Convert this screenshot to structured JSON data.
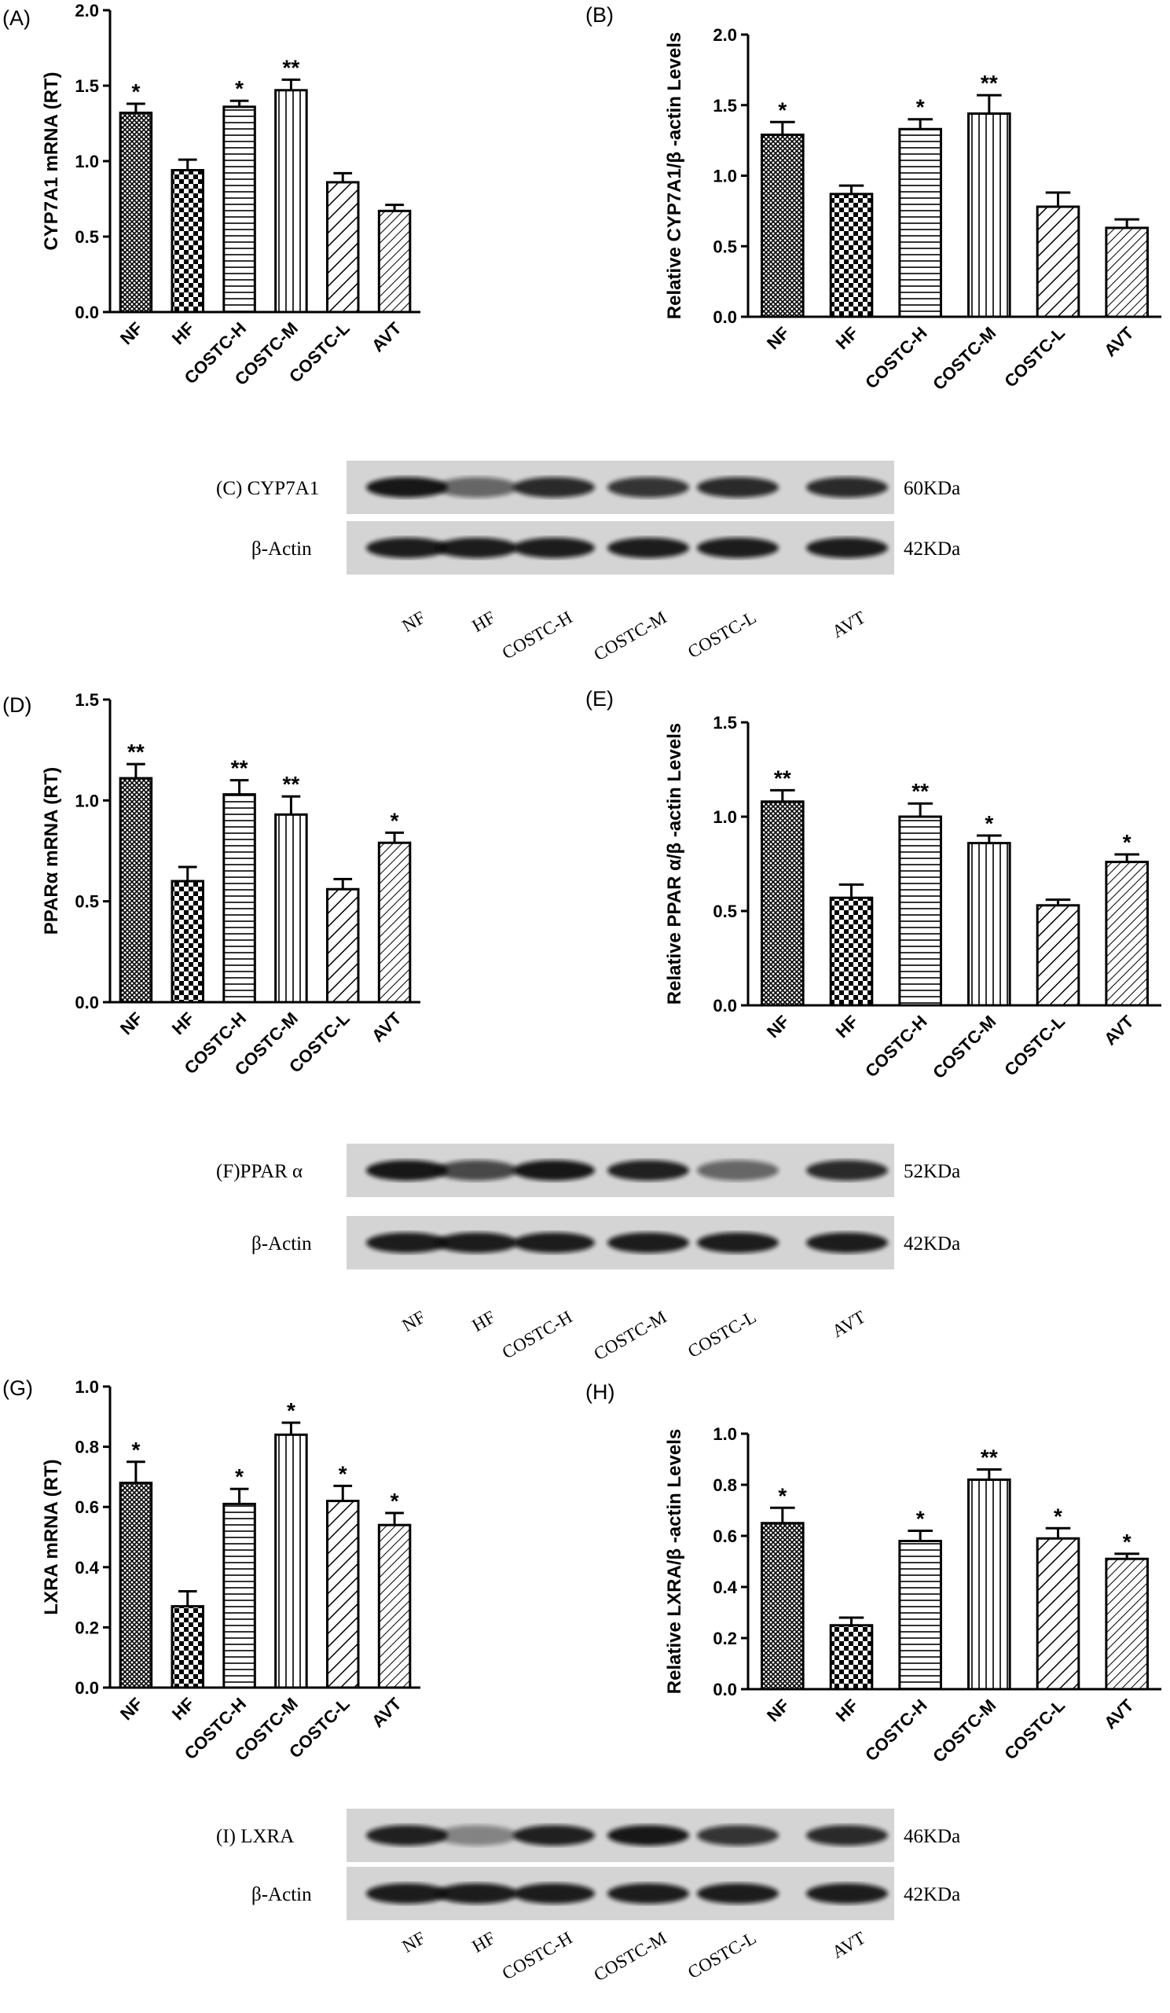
{
  "chart_data": [
    {
      "type": "bar",
      "panel": "(A)",
      "ylabel": "CYP7A1 mRNA (RT)",
      "color": "#000000",
      "categories": [
        "NF",
        "HF",
        "COSTC-H",
        "COSTC-M",
        "COSTC-L",
        "AVT"
      ],
      "values": [
        1.32,
        0.94,
        1.36,
        1.47,
        0.86,
        0.67
      ],
      "errors": [
        0.06,
        0.07,
        0.04,
        0.07,
        0.06,
        0.04
      ],
      "value_labels": [
        "*",
        null,
        "*",
        "**",
        null,
        null
      ],
      "ylim": [
        0,
        2
      ],
      "yticks": [
        {
          "value": 0,
          "label": "0.0"
        },
        {
          "value": 0.5,
          "label": "0.5"
        },
        {
          "value": 1,
          "label": "1.0"
        },
        {
          "value": 1.5,
          "label": "1.5"
        },
        {
          "value": 2,
          "label": "2.0"
        }
      ]
    },
    {
      "type": "bar",
      "panel": "(B)",
      "ylabel": "Relative CYP7A1/β -actin Levels",
      "color": "#000000",
      "categories": [
        "NF",
        "HF",
        "COSTC-H",
        "COSTC-M",
        "COSTC-L",
        "AVT"
      ],
      "values": [
        1.29,
        0.87,
        1.33,
        1.44,
        0.78,
        0.63
      ],
      "errors": [
        0.09,
        0.06,
        0.07,
        0.13,
        0.1,
        0.06
      ],
      "value_labels": [
        "*",
        null,
        "*",
        "**",
        null,
        null
      ],
      "ylim": [
        0,
        2
      ],
      "yticks": [
        {
          "value": 0,
          "label": "0.0"
        },
        {
          "value": 0.5,
          "label": "0.5"
        },
        {
          "value": 1,
          "label": "1.0"
        },
        {
          "value": 1.5,
          "label": "1.5"
        },
        {
          "value": 2,
          "label": "2.0"
        }
      ]
    },
    {
      "type": "bar",
      "panel": "(D)",
      "ylabel": "PPARα mRNA (RT)",
      "color": "#000000",
      "categories": [
        "NF",
        "HF",
        "COSTC-H",
        "COSTC-M",
        "COSTC-L",
        "AVT"
      ],
      "values": [
        1.11,
        0.6,
        1.03,
        0.93,
        0.56,
        0.79
      ],
      "errors": [
        0.07,
        0.07,
        0.07,
        0.09,
        0.05,
        0.05
      ],
      "value_labels": [
        "**",
        null,
        "**",
        "**",
        null,
        "*"
      ],
      "ylim": [
        0,
        1.5
      ],
      "yticks": [
        {
          "value": 0,
          "label": "0.0"
        },
        {
          "value": 0.5,
          "label": "0.5"
        },
        {
          "value": 1,
          "label": "1.0"
        },
        {
          "value": 1.5,
          "label": "1.5"
        }
      ]
    },
    {
      "type": "bar",
      "panel": "(E)",
      "ylabel": "Relative PPAR α/β -actin Levels",
      "color": "#000000",
      "categories": [
        "NF",
        "HF",
        "COSTC-H",
        "COSTC-M",
        "COSTC-L",
        "AVT"
      ],
      "values": [
        1.08,
        0.57,
        1.0,
        0.86,
        0.53,
        0.76
      ],
      "errors": [
        0.06,
        0.07,
        0.07,
        0.04,
        0.03,
        0.04
      ],
      "value_labels": [
        "**",
        null,
        "**",
        "*",
        null,
        "*"
      ],
      "ylim": [
        0,
        1.5
      ],
      "yticks": [
        {
          "value": 0,
          "label": "0.0"
        },
        {
          "value": 0.5,
          "label": "0.5"
        },
        {
          "value": 1,
          "label": "1.0"
        },
        {
          "value": 1.5,
          "label": "1.5"
        }
      ]
    },
    {
      "type": "bar",
      "panel": "(G)",
      "ylabel": "LXRA mRNA (RT)",
      "color": "#000000",
      "categories": [
        "NF",
        "HF",
        "COSTC-H",
        "COSTC-M",
        "COSTC-L",
        "AVT"
      ],
      "values": [
        0.68,
        0.27,
        0.61,
        0.84,
        0.62,
        0.54
      ],
      "errors": [
        0.07,
        0.05,
        0.05,
        0.04,
        0.05,
        0.04
      ],
      "value_labels": [
        "*",
        null,
        "*",
        "*",
        "*",
        "*"
      ],
      "ylim": [
        0,
        1
      ],
      "yticks": [
        {
          "value": 0,
          "label": "0.0"
        },
        {
          "value": 0.2,
          "label": "0.2"
        },
        {
          "value": 0.4,
          "label": "0.4"
        },
        {
          "value": 0.6,
          "label": "0.6"
        },
        {
          "value": 0.8,
          "label": "0.8"
        },
        {
          "value": 1,
          "label": "1.0"
        }
      ]
    },
    {
      "type": "bar",
      "panel": "(H)",
      "ylabel": "Relative LXRA/β -actin Levels",
      "color": "#000000",
      "categories": [
        "NF",
        "HF",
        "COSTC-H",
        "COSTC-M",
        "COSTC-L",
        "AVT"
      ],
      "values": [
        0.65,
        0.25,
        0.58,
        0.82,
        0.59,
        0.51
      ],
      "errors": [
        0.06,
        0.03,
        0.04,
        0.04,
        0.04,
        0.02
      ],
      "value_labels": [
        "*",
        null,
        "*",
        "**",
        "*",
        "*"
      ],
      "ylim": [
        0,
        1
      ],
      "yticks": [
        {
          "value": 0,
          "label": "0.0"
        },
        {
          "value": 0.2,
          "label": "0.2"
        },
        {
          "value": 0.4,
          "label": "0.4"
        },
        {
          "value": 0.6,
          "label": "0.6"
        },
        {
          "value": 0.8,
          "label": "0.8"
        },
        {
          "value": 1,
          "label": "1.0"
        }
      ]
    }
  ],
  "blots": [
    {
      "label": "(C) CYP7A1",
      "size": "60KDa",
      "control": "β-Actin",
      "control_size": "42KDa",
      "lanes": [
        "NF",
        "HF",
        "COSTC-H",
        "COSTC-M",
        "COSTC-L",
        "AVT"
      ]
    },
    {
      "label": "(F)PPAR α",
      "size": "52KDa",
      "control": "β-Actin",
      "control_size": "42KDa",
      "lanes": [
        "NF",
        "HF",
        "COSTC-H",
        "COSTC-M",
        "COSTC-L",
        "AVT"
      ]
    },
    {
      "label": "(I) LXRA",
      "size": "46KDa",
      "control": "β-Actin",
      "control_size": "42KDa",
      "lanes": [
        "NF",
        "HF",
        "COSTC-H",
        "COSTC-M",
        "COSTC-L",
        "AVT"
      ]
    }
  ]
}
